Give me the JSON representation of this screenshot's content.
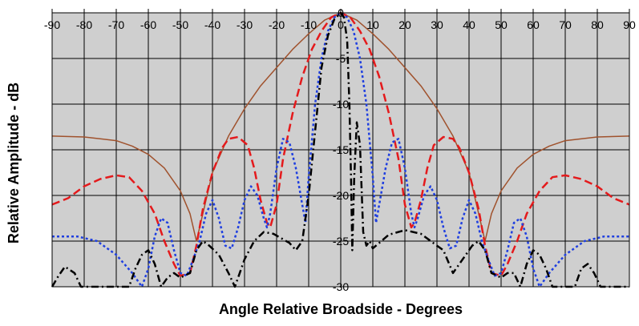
{
  "chart_data": {
    "type": "line",
    "xlabel": "Angle Relative Broadside - Degrees",
    "ylabel": "Relative Amplitude - dB",
    "xlim": [
      -90,
      90
    ],
    "ylim": [
      -30,
      0
    ],
    "x_ticks": [
      "-90",
      "-80",
      "-70",
      "-60",
      "-50",
      "-40",
      "-30",
      "-20",
      "-10",
      "0",
      "10",
      "20",
      "30",
      "40",
      "50",
      "60",
      "70",
      "80",
      "90"
    ],
    "y_ticks": [
      "0",
      "-5",
      "-10",
      "-15",
      "-20",
      "-25",
      "-30"
    ],
    "grid": true,
    "legend": "none",
    "series": [
      {
        "color": "#a0522d",
        "style": "solid",
        "points": [
          [
            -90,
            -13.5
          ],
          [
            -80,
            -13.6
          ],
          [
            -70,
            -14
          ],
          [
            -65,
            -14.6
          ],
          [
            -60,
            -15.5
          ],
          [
            -55,
            -17
          ],
          [
            -50,
            -19.5
          ],
          [
            -47,
            -22
          ],
          [
            -45,
            -25
          ],
          [
            -43,
            -22
          ],
          [
            -40,
            -17.5
          ],
          [
            -35,
            -13.5
          ],
          [
            -30,
            -10.5
          ],
          [
            -25,
            -8
          ],
          [
            -20,
            -6
          ],
          [
            -15,
            -4
          ],
          [
            -10,
            -2.3
          ],
          [
            -5,
            -0.8
          ],
          [
            0,
            0
          ],
          [
            5,
            -0.8
          ],
          [
            10,
            -2.3
          ],
          [
            15,
            -4
          ],
          [
            20,
            -6
          ],
          [
            25,
            -8
          ],
          [
            30,
            -10.5
          ],
          [
            35,
            -13.5
          ],
          [
            40,
            -17.5
          ],
          [
            43,
            -22
          ],
          [
            45,
            -25
          ],
          [
            47,
            -22
          ],
          [
            50,
            -19.5
          ],
          [
            55,
            -17
          ],
          [
            60,
            -15.5
          ],
          [
            65,
            -14.6
          ],
          [
            70,
            -14
          ],
          [
            80,
            -13.6
          ],
          [
            90,
            -13.5
          ]
        ]
      },
      {
        "color": "#e41a1c",
        "style": "dashed",
        "points": [
          [
            -90,
            -21
          ],
          [
            -85,
            -20.3
          ],
          [
            -80,
            -19
          ],
          [
            -75,
            -18.2
          ],
          [
            -70,
            -17.8
          ],
          [
            -66,
            -18
          ],
          [
            -62,
            -19.5
          ],
          [
            -58,
            -22
          ],
          [
            -55,
            -25
          ],
          [
            -52,
            -27.5
          ],
          [
            -50,
            -28.8
          ],
          [
            -47,
            -28.5
          ],
          [
            -45,
            -25.5
          ],
          [
            -43,
            -21.5
          ],
          [
            -40,
            -17.5
          ],
          [
            -37,
            -14.8
          ],
          [
            -35,
            -13.8
          ],
          [
            -32,
            -13.6
          ],
          [
            -29,
            -14.5
          ],
          [
            -27,
            -17
          ],
          [
            -25,
            -20.5
          ],
          [
            -23,
            -23
          ],
          [
            -22,
            -23.5
          ],
          [
            -20,
            -21
          ],
          [
            -18,
            -16
          ],
          [
            -15,
            -11
          ],
          [
            -12,
            -7
          ],
          [
            -9,
            -4
          ],
          [
            -6,
            -2
          ],
          [
            -3,
            -0.5
          ],
          [
            0,
            0
          ],
          [
            3,
            -0.5
          ],
          [
            6,
            -2
          ],
          [
            9,
            -4
          ],
          [
            12,
            -7
          ],
          [
            15,
            -11
          ],
          [
            18,
            -16
          ],
          [
            20,
            -21
          ],
          [
            22,
            -23.5
          ],
          [
            23,
            -23
          ],
          [
            25,
            -20.5
          ],
          [
            27,
            -17
          ],
          [
            29,
            -14.5
          ],
          [
            32,
            -13.6
          ],
          [
            35,
            -13.8
          ],
          [
            37,
            -14.8
          ],
          [
            40,
            -17.5
          ],
          [
            43,
            -21.5
          ],
          [
            45,
            -25.5
          ],
          [
            47,
            -28.5
          ],
          [
            50,
            -28.8
          ],
          [
            52,
            -27.5
          ],
          [
            55,
            -25
          ],
          [
            58,
            -22
          ],
          [
            62,
            -19.5
          ],
          [
            66,
            -18
          ],
          [
            70,
            -17.8
          ],
          [
            75,
            -18.2
          ],
          [
            80,
            -19
          ],
          [
            85,
            -20.3
          ],
          [
            90,
            -21
          ]
        ]
      },
      {
        "color": "#1f3fe0",
        "style": "dotted",
        "points": [
          [
            -90,
            -24.5
          ],
          [
            -82,
            -24.5
          ],
          [
            -76,
            -25
          ],
          [
            -70,
            -26.5
          ],
          [
            -65,
            -28.5
          ],
          [
            -62,
            -30
          ],
          [
            -60,
            -28
          ],
          [
            -58,
            -24.5
          ],
          [
            -56,
            -22.5
          ],
          [
            -54,
            -23
          ],
          [
            -52,
            -26
          ],
          [
            -50,
            -28.5
          ],
          [
            -48,
            -28.8
          ],
          [
            -46,
            -27
          ],
          [
            -44,
            -25
          ],
          [
            -42,
            -22
          ],
          [
            -40,
            -20.5
          ],
          [
            -38,
            -22.5
          ],
          [
            -36,
            -25.5
          ],
          [
            -34,
            -25.8
          ],
          [
            -32,
            -23.5
          ],
          [
            -30,
            -20.5
          ],
          [
            -28,
            -19
          ],
          [
            -26,
            -20
          ],
          [
            -24,
            -22.5
          ],
          [
            -23,
            -23.5
          ],
          [
            -22,
            -22
          ],
          [
            -20,
            -17
          ],
          [
            -18,
            -13.8
          ],
          [
            -16,
            -14.2
          ],
          [
            -14,
            -17
          ],
          [
            -12,
            -21
          ],
          [
            -11,
            -23
          ],
          [
            -10,
            -18
          ],
          [
            -8,
            -10
          ],
          [
            -6,
            -5
          ],
          [
            -4,
            -2
          ],
          [
            -2,
            -0.5
          ],
          [
            0,
            0
          ],
          [
            2,
            -0.5
          ],
          [
            4,
            -2
          ],
          [
            6,
            -5
          ],
          [
            8,
            -10
          ],
          [
            10,
            -18
          ],
          [
            11,
            -23
          ],
          [
            12,
            -21
          ],
          [
            14,
            -17
          ],
          [
            16,
            -14.2
          ],
          [
            18,
            -13.8
          ],
          [
            20,
            -17
          ],
          [
            22,
            -22
          ],
          [
            23,
            -23.5
          ],
          [
            24,
            -22.5
          ],
          [
            26,
            -20
          ],
          [
            28,
            -19
          ],
          [
            30,
            -20.5
          ],
          [
            32,
            -23.5
          ],
          [
            34,
            -25.8
          ],
          [
            36,
            -25.5
          ],
          [
            38,
            -22.5
          ],
          [
            40,
            -20.5
          ],
          [
            42,
            -22
          ],
          [
            44,
            -25
          ],
          [
            46,
            -27
          ],
          [
            48,
            -28.8
          ],
          [
            50,
            -28.5
          ],
          [
            52,
            -26
          ],
          [
            54,
            -23
          ],
          [
            56,
            -22.5
          ],
          [
            58,
            -24.5
          ],
          [
            60,
            -28
          ],
          [
            62,
            -30
          ],
          [
            65,
            -28.5
          ],
          [
            70,
            -26.5
          ],
          [
            76,
            -25
          ],
          [
            82,
            -24.5
          ],
          [
            90,
            -24.5
          ]
        ]
      },
      {
        "color": "#000000",
        "style": "dashdot",
        "points": [
          [
            -90,
            -30
          ],
          [
            -88,
            -28.8
          ],
          [
            -86,
            -27.8
          ],
          [
            -83,
            -28.5
          ],
          [
            -81,
            -30
          ],
          [
            -66,
            -30
          ],
          [
            -64,
            -28
          ],
          [
            -62,
            -26.5
          ],
          [
            -60,
            -26
          ],
          [
            -58,
            -27.5
          ],
          [
            -56,
            -30
          ],
          [
            -54,
            -29
          ],
          [
            -52,
            -28.5
          ],
          [
            -50,
            -29
          ],
          [
            -47,
            -28.5
          ],
          [
            -45,
            -26
          ],
          [
            -43,
            -25
          ],
          [
            -41,
            -25.5
          ],
          [
            -38,
            -26.5
          ],
          [
            -35,
            -28.5
          ],
          [
            -33,
            -30
          ],
          [
            -30,
            -27
          ],
          [
            -27,
            -25
          ],
          [
            -24,
            -24
          ],
          [
            -21,
            -24.2
          ],
          [
            -18,
            -24.8
          ],
          [
            -16,
            -25.2
          ],
          [
            -14,
            -26
          ],
          [
            -12,
            -25
          ],
          [
            -10,
            -20
          ],
          [
            -8,
            -13
          ],
          [
            -6,
            -6
          ],
          [
            -4,
            -2.5
          ],
          [
            -2,
            -0.7
          ],
          [
            0,
            0
          ],
          [
            1,
            -0.5
          ],
          [
            2,
            -3
          ],
          [
            2.7,
            -10
          ],
          [
            3.2,
            -18
          ],
          [
            3.6,
            -26
          ],
          [
            4.2,
            -18
          ],
          [
            5,
            -12
          ],
          [
            6,
            -14.5
          ],
          [
            7,
            -24
          ],
          [
            8,
            -25.5
          ],
          [
            9,
            -25
          ],
          [
            10,
            -25.8
          ],
          [
            12,
            -25.2
          ],
          [
            15,
            -24.3
          ],
          [
            20,
            -23.8
          ],
          [
            25,
            -24.2
          ],
          [
            30,
            -25.5
          ],
          [
            32,
            -26
          ],
          [
            35,
            -28.5
          ],
          [
            38,
            -27
          ],
          [
            41,
            -25.5
          ],
          [
            43,
            -25
          ],
          [
            45,
            -26
          ],
          [
            47,
            -28.5
          ],
          [
            50,
            -29
          ],
          [
            52,
            -28.5
          ],
          [
            54,
            -28.5
          ],
          [
            56,
            -30
          ],
          [
            58,
            -27.5
          ],
          [
            60,
            -26
          ],
          [
            62,
            -26.5
          ],
          [
            64,
            -28
          ],
          [
            66,
            -30
          ],
          [
            73,
            -30
          ],
          [
            75,
            -28
          ],
          [
            77,
            -27.5
          ],
          [
            79,
            -28.5
          ],
          [
            81,
            -30
          ],
          [
            90,
            -30
          ]
        ]
      }
    ]
  }
}
